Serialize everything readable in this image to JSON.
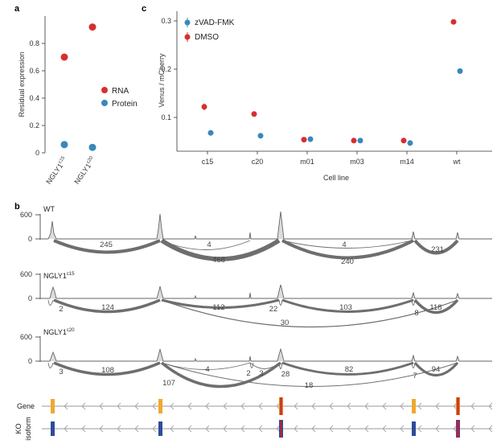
{
  "chart_data": [
    {
      "panel": "a",
      "type": "scatter",
      "categories": [
        "NGLY1c15",
        "NGLY1c20"
      ],
      "category_labels": [
        {
          "base": "NGLY1",
          "sup": "c15"
        },
        {
          "base": "NGLY1",
          "sup": "c20"
        }
      ],
      "ylabel": "Residual expression",
      "ylim": [
        0,
        1.0
      ],
      "yticks": [
        "0",
        "0.2",
        "0.4",
        "0.6",
        "0.8"
      ],
      "series": [
        {
          "name": "RNA",
          "color": "#d62f2f",
          "values": [
            0.7,
            0.92
          ]
        },
        {
          "name": "Protein",
          "color": "#3a87bd",
          "values": [
            0.06,
            0.04
          ]
        }
      ],
      "legend": [
        "RNA",
        "Protein"
      ]
    },
    {
      "panel": "c",
      "type": "scatter",
      "categories": [
        "c15",
        "c20",
        "m01",
        "m03",
        "m14",
        "wt"
      ],
      "xlabel": "Cell line",
      "ylabel": "Venus / mCherry",
      "ylim": [
        0.03,
        0.32
      ],
      "yticks": [
        "0.1",
        "0.2",
        "0.3"
      ],
      "series": [
        {
          "name": "zVAD-FMK",
          "color": "#3a87bd",
          "values": [
            0.068,
            0.062,
            0.055,
            0.052,
            0.047,
            0.196
          ],
          "err": [
            0.006,
            0.003,
            0.003,
            0.003,
            0.003,
            0.003
          ]
        },
        {
          "name": "DMSO",
          "color": "#d62f2f",
          "values": [
            0.122,
            0.107,
            0.054,
            0.052,
            0.052,
            0.298
          ],
          "err": [
            0.007,
            0.005,
            0.003,
            0.003,
            0.003,
            0.005
          ]
        }
      ],
      "legend": [
        "zVAD-FMK",
        "DMSO"
      ]
    },
    {
      "panel": "b",
      "type": "sashimi",
      "tracks": [
        {
          "name": "WT",
          "name_sup": "",
          "yticks": [
            "600",
            "0"
          ],
          "junction_counts": [
            "245",
            "4",
            "468",
            "4",
            "240",
            "231"
          ]
        },
        {
          "name": "NGLY1",
          "name_sup": "c15",
          "yticks": [
            "600",
            "0"
          ],
          "junction_counts": [
            "2",
            "124",
            "112",
            "22",
            "103",
            "8",
            "118",
            "30"
          ]
        },
        {
          "name": "NGLY1",
          "name_sup": "c20",
          "yticks": [
            "600",
            "0"
          ],
          "junction_counts": [
            "3",
            "108",
            "107",
            "4",
            "2",
            "3",
            "28",
            "82",
            "7",
            "94",
            "18"
          ]
        }
      ],
      "gene_tracks": [
        "Gene",
        "KO isoform"
      ],
      "gene_track_labels": {
        "gene": "Gene",
        "ko_line1": "KO",
        "ko_line2": "isoform"
      }
    }
  ],
  "panel_labels": {
    "a": "a",
    "b": "b",
    "c": "c"
  }
}
